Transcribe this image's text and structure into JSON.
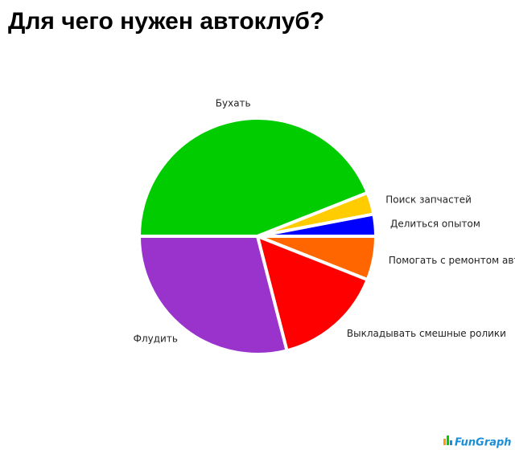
{
  "chart_data": {
    "type": "pie",
    "title": "Для чего нужен автоклуб?",
    "categories": [
      "Бухать",
      "Поиск запчастей",
      "Делиться опытом",
      "Помогать с ремонтом авто",
      "Выкладывать смешные ролики",
      "Флудить"
    ],
    "values": [
      44,
      3,
      3,
      6,
      15,
      29
    ],
    "colors": [
      "#00cc00",
      "#ffcc00",
      "#0000ff",
      "#ff6600",
      "#ff0000",
      "#9933cc"
    ]
  },
  "logo": "FunGraph"
}
